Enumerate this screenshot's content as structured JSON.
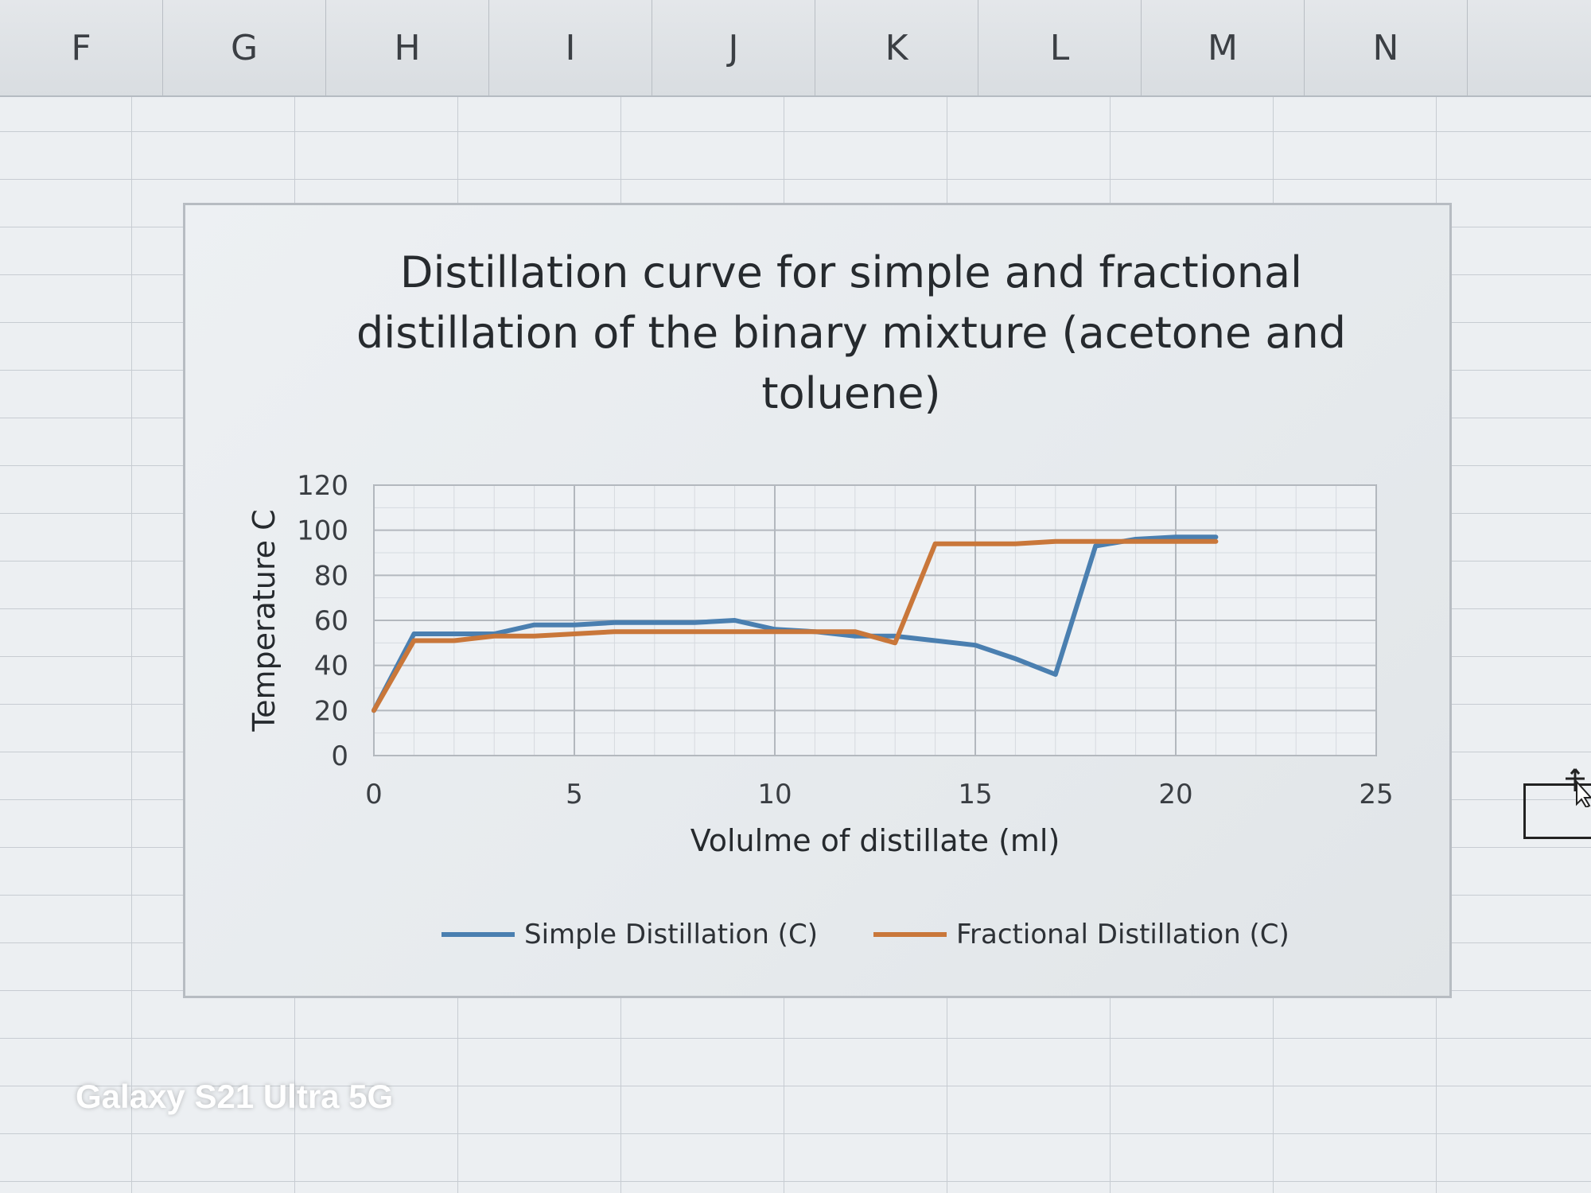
{
  "spreadsheet": {
    "columns": [
      "F",
      "G",
      "H",
      "I",
      "J",
      "K",
      "L",
      "M",
      "N",
      ""
    ]
  },
  "watermark": "Galaxy S21 Ultra 5G",
  "chart_data": {
    "type": "line",
    "title_lines": [
      "Distillation curve for simple and fractional",
      "distillation of the binary mixture (acetone and",
      "toluene)"
    ],
    "xlabel": "Volulme of distillate (ml)",
    "ylabel": "Temperature C",
    "xlim": [
      0,
      25
    ],
    "ylim": [
      0,
      120
    ],
    "xticks": [
      0,
      5,
      10,
      15,
      20,
      25
    ],
    "yticks": [
      0,
      20,
      40,
      60,
      80,
      100,
      120
    ],
    "grid": true,
    "legend_position": "bottom",
    "series": [
      {
        "name": "Simple Distillation (C)",
        "color": "#4a7fb0",
        "x": [
          0,
          1,
          2,
          3,
          4,
          5,
          6,
          7,
          8,
          9,
          10,
          11,
          12,
          13,
          14,
          15,
          16,
          17,
          18,
          19,
          20,
          21
        ],
        "y": [
          20,
          54,
          54,
          54,
          58,
          58,
          59,
          59,
          59,
          60,
          56,
          55,
          53,
          53,
          51,
          49,
          43,
          36,
          93,
          96,
          97,
          97
        ]
      },
      {
        "name": "Fractional Distillation (C)",
        "color": "#c9773a",
        "x": [
          0,
          1,
          2,
          3,
          4,
          5,
          6,
          7,
          8,
          9,
          10,
          11,
          12,
          13,
          14,
          15,
          16,
          17,
          18,
          19,
          20,
          21
        ],
        "y": [
          20,
          51,
          51,
          53,
          53,
          54,
          55,
          55,
          55,
          55,
          55,
          55,
          55,
          50,
          94,
          94,
          94,
          95,
          95,
          95,
          95,
          95
        ]
      }
    ]
  }
}
